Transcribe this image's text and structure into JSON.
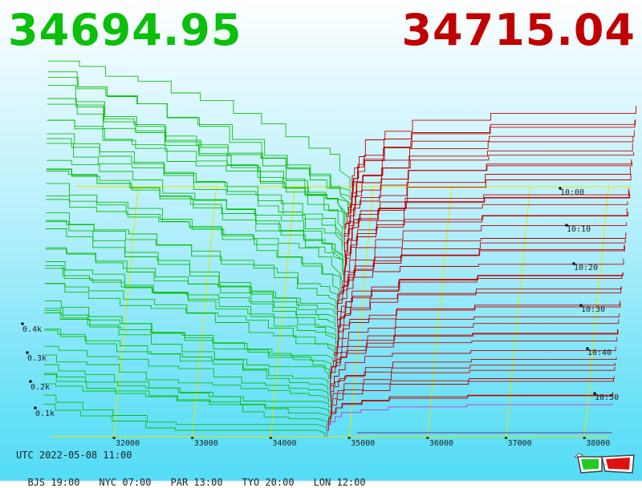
{
  "prices": {
    "bid": "34694.95",
    "ask": "34715.04"
  },
  "colors": {
    "bid": "#0cbf0c",
    "ask": "#c00000",
    "grid": "#e6e600",
    "floor_line": "#6b2a8a"
  },
  "chart_data": {
    "type": "area",
    "x": [
      32000,
      33000,
      34000,
      35000,
      36000,
      37000,
      38000
    ],
    "x_tick_labels": [
      "32000",
      "33000",
      "34000",
      "35000",
      "36000",
      "37000",
      "38000"
    ],
    "y_tick_labels": [
      "0.1k",
      "0.2k",
      "0.3k",
      "0.4k"
    ],
    "z_tick_labels": [
      "10:00",
      "10:10",
      "10:20",
      "10:30",
      "10:40",
      "10:50"
    ],
    "bid_price": 34694.95,
    "ask_price": 34715.04,
    "grid": true
  },
  "footer": {
    "utc": "UTC 2022-05-08 11:00",
    "cities": [
      {
        "label": "BJS 19:00"
      },
      {
        "label": "NYC 07:00"
      },
      {
        "label": "PAR 13:00"
      },
      {
        "label": "TYO 20:00"
      },
      {
        "label": "LON 12:00"
      }
    ]
  },
  "icons": {
    "glasses": "3d-glasses-icon"
  }
}
